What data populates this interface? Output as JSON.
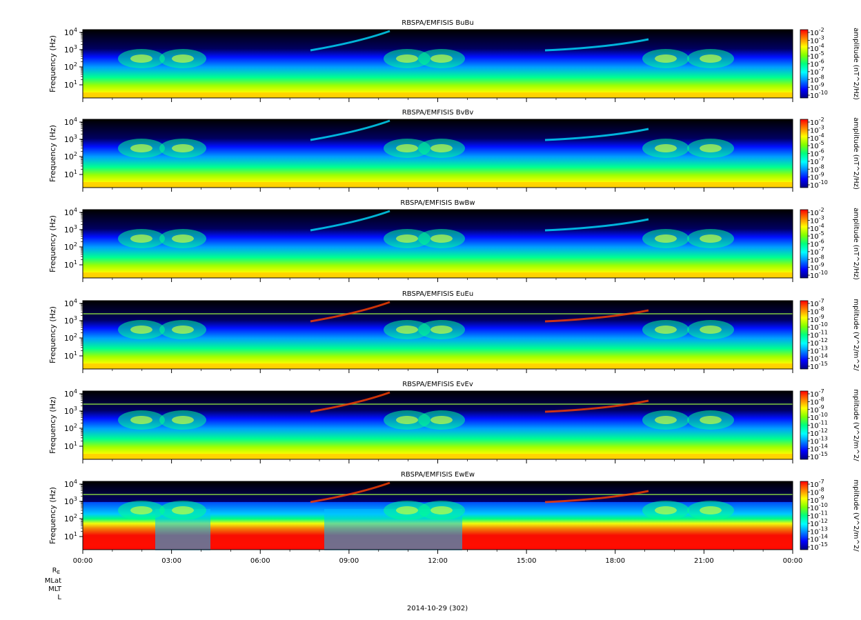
{
  "figure": {
    "date_label": "2014-10-29 (302)",
    "orbit_labels": [
      "R",
      "MLat",
      "MLT",
      "L"
    ],
    "orbit_label_r_subscript": "E"
  },
  "colors": {
    "spectrogram_scale": [
      "#000080",
      "#0000ff",
      "#0080ff",
      "#00ffff",
      "#00ff80",
      "#80ff00",
      "#ffff00",
      "#ff8000",
      "#ff0000"
    ],
    "background_low": "#000000"
  },
  "chart_data": [
    {
      "type": "heatmap",
      "title": "RBSPA/EMFISIS  BuBu",
      "ylabel": "Frequency (Hz)",
      "yscale": "log",
      "y_ticks": [
        "10",
        "10",
        "10",
        "10"
      ],
      "y_tick_exponents": [
        "1",
        "2",
        "3",
        "4"
      ],
      "colorbar_label": "amplitude (nT^2/Hz)",
      "colorbar_ticks": [
        "-2",
        "-3",
        "-4",
        "-5",
        "-6",
        "-7",
        "-8",
        "-9",
        "-10"
      ],
      "colorbar_base": "10",
      "x_ticks": [
        "00:00",
        "03:00",
        "06:00",
        "09:00",
        "12:00",
        "15:00",
        "18:00",
        "21:00",
        "00:00"
      ],
      "show_x_tick_labels": false
    },
    {
      "type": "heatmap",
      "title": "RBSPA/EMFISIS  BvBv",
      "ylabel": "Frequency (Hz)",
      "yscale": "log",
      "y_ticks": [
        "10",
        "10",
        "10",
        "10"
      ],
      "y_tick_exponents": [
        "1",
        "2",
        "3",
        "4"
      ],
      "colorbar_label": "amplitude (nT^2/Hz)",
      "colorbar_ticks": [
        "-2",
        "-3",
        "-4",
        "-5",
        "-6",
        "-7",
        "-8",
        "-9",
        "-10"
      ],
      "colorbar_base": "10",
      "x_ticks": [
        "00:00",
        "03:00",
        "06:00",
        "09:00",
        "12:00",
        "15:00",
        "18:00",
        "21:00",
        "00:00"
      ],
      "show_x_tick_labels": false
    },
    {
      "type": "heatmap",
      "title": "RBSPA/EMFISIS  BwBw",
      "ylabel": "Frequency (Hz)",
      "yscale": "log",
      "y_ticks": [
        "10",
        "10",
        "10",
        "10"
      ],
      "y_tick_exponents": [
        "1",
        "2",
        "3",
        "4"
      ],
      "colorbar_label": "amplitude (nT^2/Hz)",
      "colorbar_ticks": [
        "-2",
        "-3",
        "-4",
        "-5",
        "-6",
        "-7",
        "-8",
        "-9",
        "-10"
      ],
      "colorbar_base": "10",
      "x_ticks": [
        "00:00",
        "03:00",
        "06:00",
        "09:00",
        "12:00",
        "15:00",
        "18:00",
        "21:00",
        "00:00"
      ],
      "show_x_tick_labels": false
    },
    {
      "type": "heatmap",
      "title": "RBSPA/EMFISIS  EuEu",
      "ylabel": "Frequency (Hz)",
      "yscale": "log",
      "y_ticks": [
        "10",
        "10",
        "10",
        "10"
      ],
      "y_tick_exponents": [
        "1",
        "2",
        "3",
        "4"
      ],
      "colorbar_label": "mplitude (V^2/m^2/",
      "colorbar_ticks": [
        "-7",
        "-8",
        "-9",
        "-10",
        "-11",
        "-12",
        "-13",
        "-14",
        "-15"
      ],
      "colorbar_base": "10",
      "x_ticks": [
        "00:00",
        "03:00",
        "06:00",
        "09:00",
        "12:00",
        "15:00",
        "18:00",
        "21:00",
        "00:00"
      ],
      "show_x_tick_labels": false
    },
    {
      "type": "heatmap",
      "title": "RBSPA/EMFISIS  EvEv",
      "ylabel": "Frequency (Hz)",
      "yscale": "log",
      "y_ticks": [
        "10",
        "10",
        "10",
        "10"
      ],
      "y_tick_exponents": [
        "1",
        "2",
        "3",
        "4"
      ],
      "colorbar_label": "mplitude (V^2/m^2/",
      "colorbar_ticks": [
        "-7",
        "-8",
        "-9",
        "-10",
        "-11",
        "-12",
        "-13",
        "-14",
        "-15"
      ],
      "colorbar_base": "10",
      "x_ticks": [
        "00:00",
        "03:00",
        "06:00",
        "09:00",
        "12:00",
        "15:00",
        "18:00",
        "21:00",
        "00:00"
      ],
      "show_x_tick_labels": false
    },
    {
      "type": "heatmap",
      "title": "RBSPA/EMFISIS  EwEw",
      "ylabel": "Frequency (Hz)",
      "yscale": "log",
      "y_ticks": [
        "10",
        "10",
        "10",
        "10"
      ],
      "y_tick_exponents": [
        "1",
        "2",
        "3",
        "4"
      ],
      "colorbar_label": "mplitude (V^2/m^2/",
      "colorbar_ticks": [
        "-7",
        "-8",
        "-9",
        "-10",
        "-11",
        "-12",
        "-13",
        "-14",
        "-15"
      ],
      "colorbar_base": "10",
      "x_ticks": [
        "00:00",
        "03:00",
        "06:00",
        "09:00",
        "12:00",
        "15:00",
        "18:00",
        "21:00",
        "00:00"
      ],
      "show_x_tick_labels": true
    }
  ]
}
